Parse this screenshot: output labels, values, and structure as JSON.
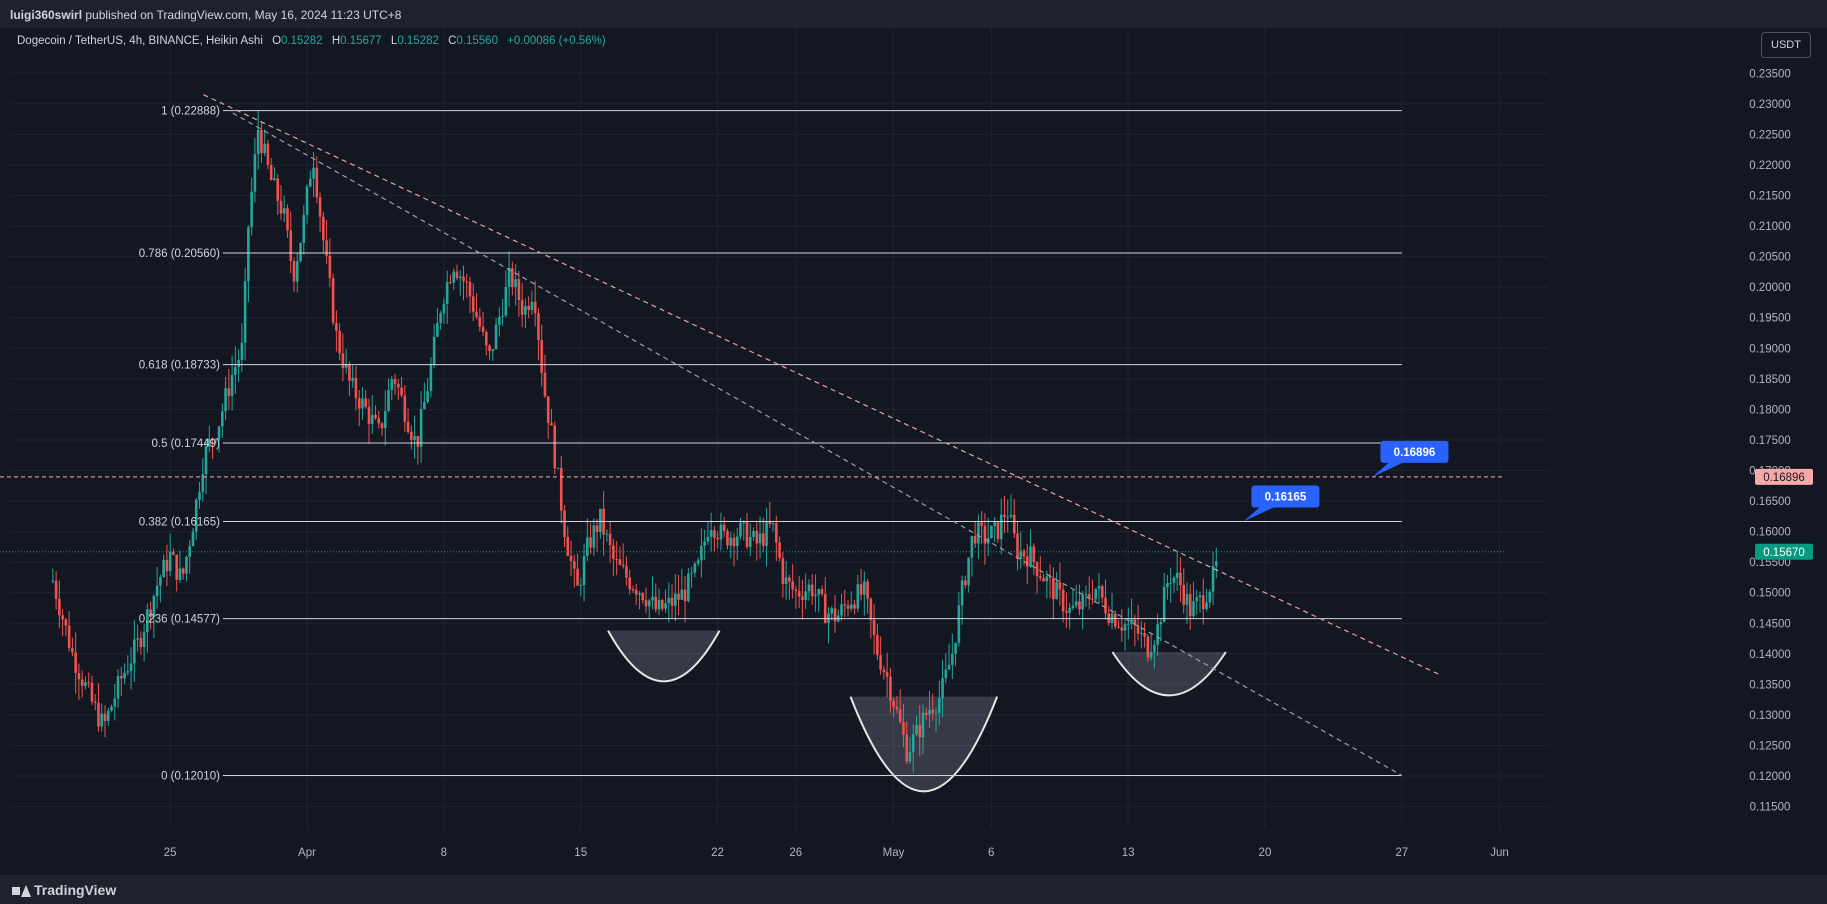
{
  "header": {
    "publisher": "luigi360swirl",
    "published_text": "published on TradingView.com, May 16, 2024 11:23 UTC+8"
  },
  "legend": {
    "symbol": "Dogecoin / TetherUS, 4h, BINANCE, Heikin Ashi",
    "open_label": "O",
    "open": "0.15282",
    "high_label": "H",
    "high": "0.15677",
    "low_label": "L",
    "low": "0.15282",
    "close_label": "C",
    "close": "0.15560",
    "change": "+0.00086 (+0.56%)"
  },
  "currency_button": "USDT",
  "footer": {
    "brand": "TradingView"
  },
  "colors": {
    "background": "#131722",
    "up": "#26a69a",
    "down": "#ef5350",
    "trendline": "#e8a0a8",
    "label_blue": "#2962ff",
    "price_badge": "#089981",
    "line_badge": "#f7a9a9"
  },
  "chart_data": {
    "type": "candlestick",
    "subtype": "Heikin Ashi",
    "timeframe": "4h",
    "ylim": [
      0.1115,
      0.2375
    ],
    "y_ticks": [
      "0.23500",
      "0.23000",
      "0.22500",
      "0.22000",
      "0.21500",
      "0.21000",
      "0.20500",
      "0.20000",
      "0.19500",
      "0.19000",
      "0.18500",
      "0.18000",
      "0.17500",
      "0.17000",
      "0.16500",
      "0.16000",
      "0.15500",
      "0.15000",
      "0.14500",
      "0.14000",
      "0.13500",
      "0.13000",
      "0.12500",
      "0.12000",
      "0.11500"
    ],
    "x_ticks": [
      {
        "label": "25",
        "day": -7
      },
      {
        "label": "Apr",
        "day": 0
      },
      {
        "label": "8",
        "day": 7
      },
      {
        "label": "15",
        "day": 14
      },
      {
        "label": "22",
        "day": 21
      },
      {
        "label": "26",
        "day": 25
      },
      {
        "label": "May",
        "day": 30
      },
      {
        "label": "6",
        "day": 35
      },
      {
        "label": "13",
        "day": 42
      },
      {
        "label": "20",
        "day": 49
      },
      {
        "label": "27",
        "day": 56
      },
      {
        "label": "Jun",
        "day": 61
      }
    ],
    "fib_levels": [
      {
        "label": "1 (0.22888)",
        "value": 0.22888
      },
      {
        "label": "0.786 (0.20560)",
        "value": 0.2056
      },
      {
        "label": "0.618 (0.18733)",
        "value": 0.18733
      },
      {
        "label": "0.5 (0.17449)",
        "value": 0.17449
      },
      {
        "label": "0.382 (0.16165)",
        "value": 0.16165
      },
      {
        "label": "0.236 (0.14577)",
        "value": 0.14577
      },
      {
        "label": "0 (0.12010)",
        "value": 0.1201
      }
    ],
    "fib_range_days": [
      -4.3,
      56
    ],
    "current_price": {
      "label": "0.15670",
      "value": 0.1567
    },
    "horizontal_line": {
      "label": "0.16896",
      "value": 0.16896
    },
    "callouts": [
      {
        "label": "0.16165",
        "value": 0.16165,
        "day": 47.9
      },
      {
        "label": "0.16896",
        "value": 0.16896,
        "day": 54.5
      }
    ],
    "trendlines": [
      {
        "from": {
          "day": -5.3,
          "value": 0.2315
        },
        "to": {
          "day": 58,
          "value": 0.1365
        }
      },
      {
        "from": {
          "day": -3.8,
          "value": 0.2285
        },
        "to": {
          "day": 56,
          "value": 0.1201
        }
      }
    ],
    "arcs": [
      {
        "day_from": 15.4,
        "day_to": 21.1,
        "top": 0.1438,
        "bottom": 0.1355
      },
      {
        "day_from": 27.8,
        "day_to": 35.3,
        "top": 0.133,
        "bottom": 0.1175
      },
      {
        "day_from": 41.2,
        "day_to": 47.0,
        "top": 0.1403,
        "bottom": 0.1332
      }
    ],
    "series_path": [
      {
        "day": -13,
        "value": 0.152
      },
      {
        "day": -12,
        "value": 0.14
      },
      {
        "day": -11,
        "value": 0.132
      },
      {
        "day": -10.4,
        "value": 0.128
      },
      {
        "day": -9.5,
        "value": 0.136
      },
      {
        "day": -8.6,
        "value": 0.142
      },
      {
        "day": -7.6,
        "value": 0.152
      },
      {
        "day": -7,
        "value": 0.156
      },
      {
        "day": -6.4,
        "value": 0.152
      },
      {
        "day": -5.8,
        "value": 0.162
      },
      {
        "day": -5.3,
        "value": 0.172
      },
      {
        "day": -4.5,
        "value": 0.178
      },
      {
        "day": -3.8,
        "value": 0.186
      },
      {
        "day": -3.3,
        "value": 0.19
      },
      {
        "day": -3.0,
        "value": 0.21
      },
      {
        "day": -2.5,
        "value": 0.226
      },
      {
        "day": -1.9,
        "value": 0.218
      },
      {
        "day": -1.2,
        "value": 0.212
      },
      {
        "day": -0.7,
        "value": 0.202
      },
      {
        "day": -0.2,
        "value": 0.21
      },
      {
        "day": 0.3,
        "value": 0.222
      },
      {
        "day": 0.9,
        "value": 0.206
      },
      {
        "day": 1.5,
        "value": 0.192
      },
      {
        "day": 2.2,
        "value": 0.184
      },
      {
        "day": 3.0,
        "value": 0.18
      },
      {
        "day": 3.7,
        "value": 0.176
      },
      {
        "day": 4.4,
        "value": 0.186
      },
      {
        "day": 5.0,
        "value": 0.18
      },
      {
        "day": 5.6,
        "value": 0.174
      },
      {
        "day": 6.3,
        "value": 0.186
      },
      {
        "day": 6.9,
        "value": 0.198
      },
      {
        "day": 7.5,
        "value": 0.204
      },
      {
        "day": 8.2,
        "value": 0.2
      },
      {
        "day": 8.8,
        "value": 0.194
      },
      {
        "day": 9.3,
        "value": 0.188
      },
      {
        "day": 9.9,
        "value": 0.196
      },
      {
        "day": 10.4,
        "value": 0.202
      },
      {
        "day": 11.1,
        "value": 0.196
      },
      {
        "day": 11.6,
        "value": 0.2
      },
      {
        "day": 12.1,
        "value": 0.184
      },
      {
        "day": 12.6,
        "value": 0.174
      },
      {
        "day": 13.2,
        "value": 0.16
      },
      {
        "day": 13.8,
        "value": 0.15
      },
      {
        "day": 14.4,
        "value": 0.158
      },
      {
        "day": 15.0,
        "value": 0.162
      },
      {
        "day": 15.7,
        "value": 0.155
      },
      {
        "day": 16.5,
        "value": 0.152
      },
      {
        "day": 17.2,
        "value": 0.15
      },
      {
        "day": 17.9,
        "value": 0.147
      },
      {
        "day": 18.5,
        "value": 0.148
      },
      {
        "day": 19.3,
        "value": 0.15
      },
      {
        "day": 20.0,
        "value": 0.154
      },
      {
        "day": 20.6,
        "value": 0.162
      },
      {
        "day": 21.3,
        "value": 0.159
      },
      {
        "day": 22.2,
        "value": 0.16
      },
      {
        "day": 23.0,
        "value": 0.158
      },
      {
        "day": 23.8,
        "value": 0.161
      },
      {
        "day": 24.4,
        "value": 0.152
      },
      {
        "day": 25.0,
        "value": 0.15
      },
      {
        "day": 25.8,
        "value": 0.151
      },
      {
        "day": 26.5,
        "value": 0.147
      },
      {
        "day": 27.1,
        "value": 0.146
      },
      {
        "day": 27.8,
        "value": 0.149
      },
      {
        "day": 28.5,
        "value": 0.15
      },
      {
        "day": 29.1,
        "value": 0.141
      },
      {
        "day": 29.7,
        "value": 0.136
      },
      {
        "day": 30.2,
        "value": 0.13
      },
      {
        "day": 30.7,
        "value": 0.124
      },
      {
        "day": 31.2,
        "value": 0.127
      },
      {
        "day": 31.8,
        "value": 0.131
      },
      {
        "day": 32.4,
        "value": 0.133
      },
      {
        "day": 33.0,
        "value": 0.14
      },
      {
        "day": 33.5,
        "value": 0.15
      },
      {
        "day": 34.1,
        "value": 0.16
      },
      {
        "day": 34.7,
        "value": 0.159
      },
      {
        "day": 35.3,
        "value": 0.16
      },
      {
        "day": 35.8,
        "value": 0.164
      },
      {
        "day": 36.3,
        "value": 0.157
      },
      {
        "day": 37.0,
        "value": 0.156
      },
      {
        "day": 37.6,
        "value": 0.153
      },
      {
        "day": 38.3,
        "value": 0.15
      },
      {
        "day": 39.0,
        "value": 0.147
      },
      {
        "day": 39.7,
        "value": 0.148
      },
      {
        "day": 40.3,
        "value": 0.151
      },
      {
        "day": 41.0,
        "value": 0.147
      },
      {
        "day": 41.7,
        "value": 0.145
      },
      {
        "day": 42.4,
        "value": 0.144
      },
      {
        "day": 43.0,
        "value": 0.141
      },
      {
        "day": 43.5,
        "value": 0.144
      },
      {
        "day": 44.1,
        "value": 0.153
      },
      {
        "day": 44.6,
        "value": 0.152
      },
      {
        "day": 45.2,
        "value": 0.147
      },
      {
        "day": 45.8,
        "value": 0.149
      },
      {
        "day": 46.3,
        "value": 0.152
      },
      {
        "day": 46.6,
        "value": 0.155
      }
    ]
  }
}
